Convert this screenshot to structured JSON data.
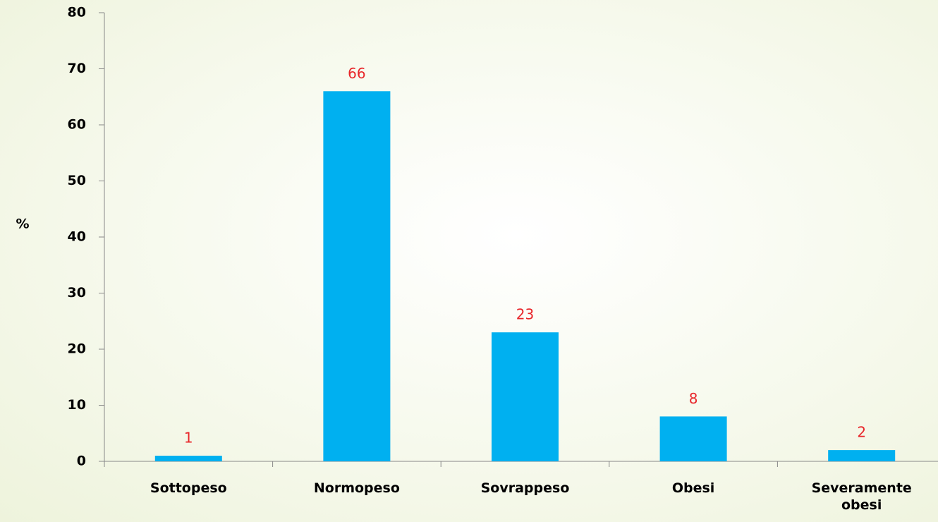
{
  "chart_data": {
    "type": "bar",
    "y_label": "%",
    "categories": [
      "Sottopeso",
      "Normopeso",
      "Sovrappeso",
      "Obesi",
      "Severamente obesi"
    ],
    "values": [
      1,
      66,
      23,
      8,
      2
    ],
    "color": "#00b0f0",
    "label_color": "#e8262a",
    "ylim": [
      0,
      80
    ],
    "yticks": [
      0,
      10,
      20,
      30,
      40,
      50,
      60,
      70,
      80
    ],
    "grid": false
  }
}
